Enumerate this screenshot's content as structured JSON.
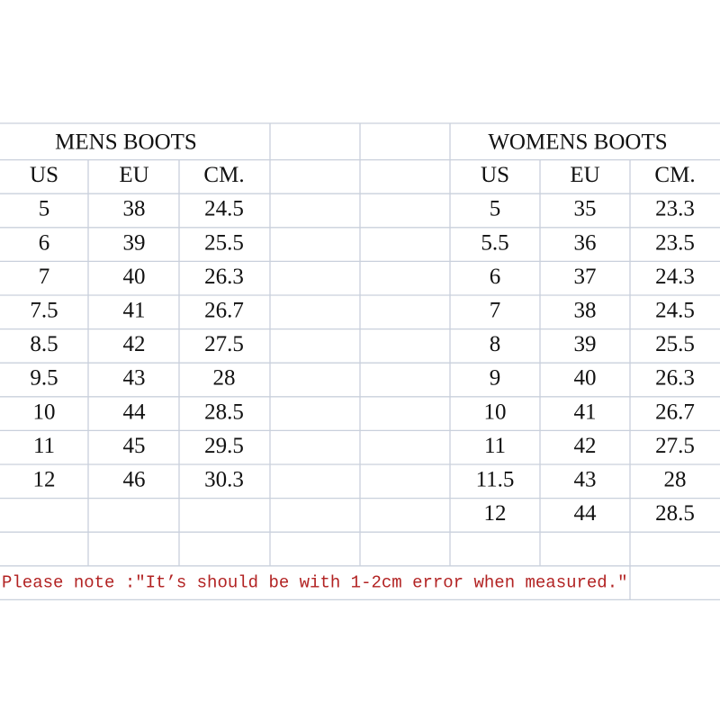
{
  "mens": {
    "title": "MENS BOOTS",
    "headers": [
      "US",
      "EU",
      "CM."
    ],
    "rows": [
      [
        "5",
        "38",
        "24.5"
      ],
      [
        "6",
        "39",
        "25.5"
      ],
      [
        "7",
        "40",
        "26.3"
      ],
      [
        "7.5",
        "41",
        "26.7"
      ],
      [
        "8.5",
        "42",
        "27.5"
      ],
      [
        "9.5",
        "43",
        "28"
      ],
      [
        "10",
        "44",
        "28.5"
      ],
      [
        "11",
        "45",
        "29.5"
      ],
      [
        "12",
        "46",
        "30.3"
      ]
    ]
  },
  "womens": {
    "title": "WOMENS BOOTS",
    "headers": [
      "US",
      "EU",
      "CM."
    ],
    "rows": [
      [
        "5",
        "35",
        "23.3"
      ],
      [
        "5.5",
        "36",
        "23.5"
      ],
      [
        "6",
        "37",
        "24.3"
      ],
      [
        "7",
        "38",
        "24.5"
      ],
      [
        "8",
        "39",
        "25.5"
      ],
      [
        "9",
        "40",
        "26.3"
      ],
      [
        "10",
        "41",
        "26.7"
      ],
      [
        "11",
        "42",
        "27.5"
      ],
      [
        "11.5",
        "43",
        "28"
      ],
      [
        "12",
        "44",
        "28.5"
      ]
    ]
  },
  "note": "Please note :″It’s should be with 1-2cm error when measured.″"
}
